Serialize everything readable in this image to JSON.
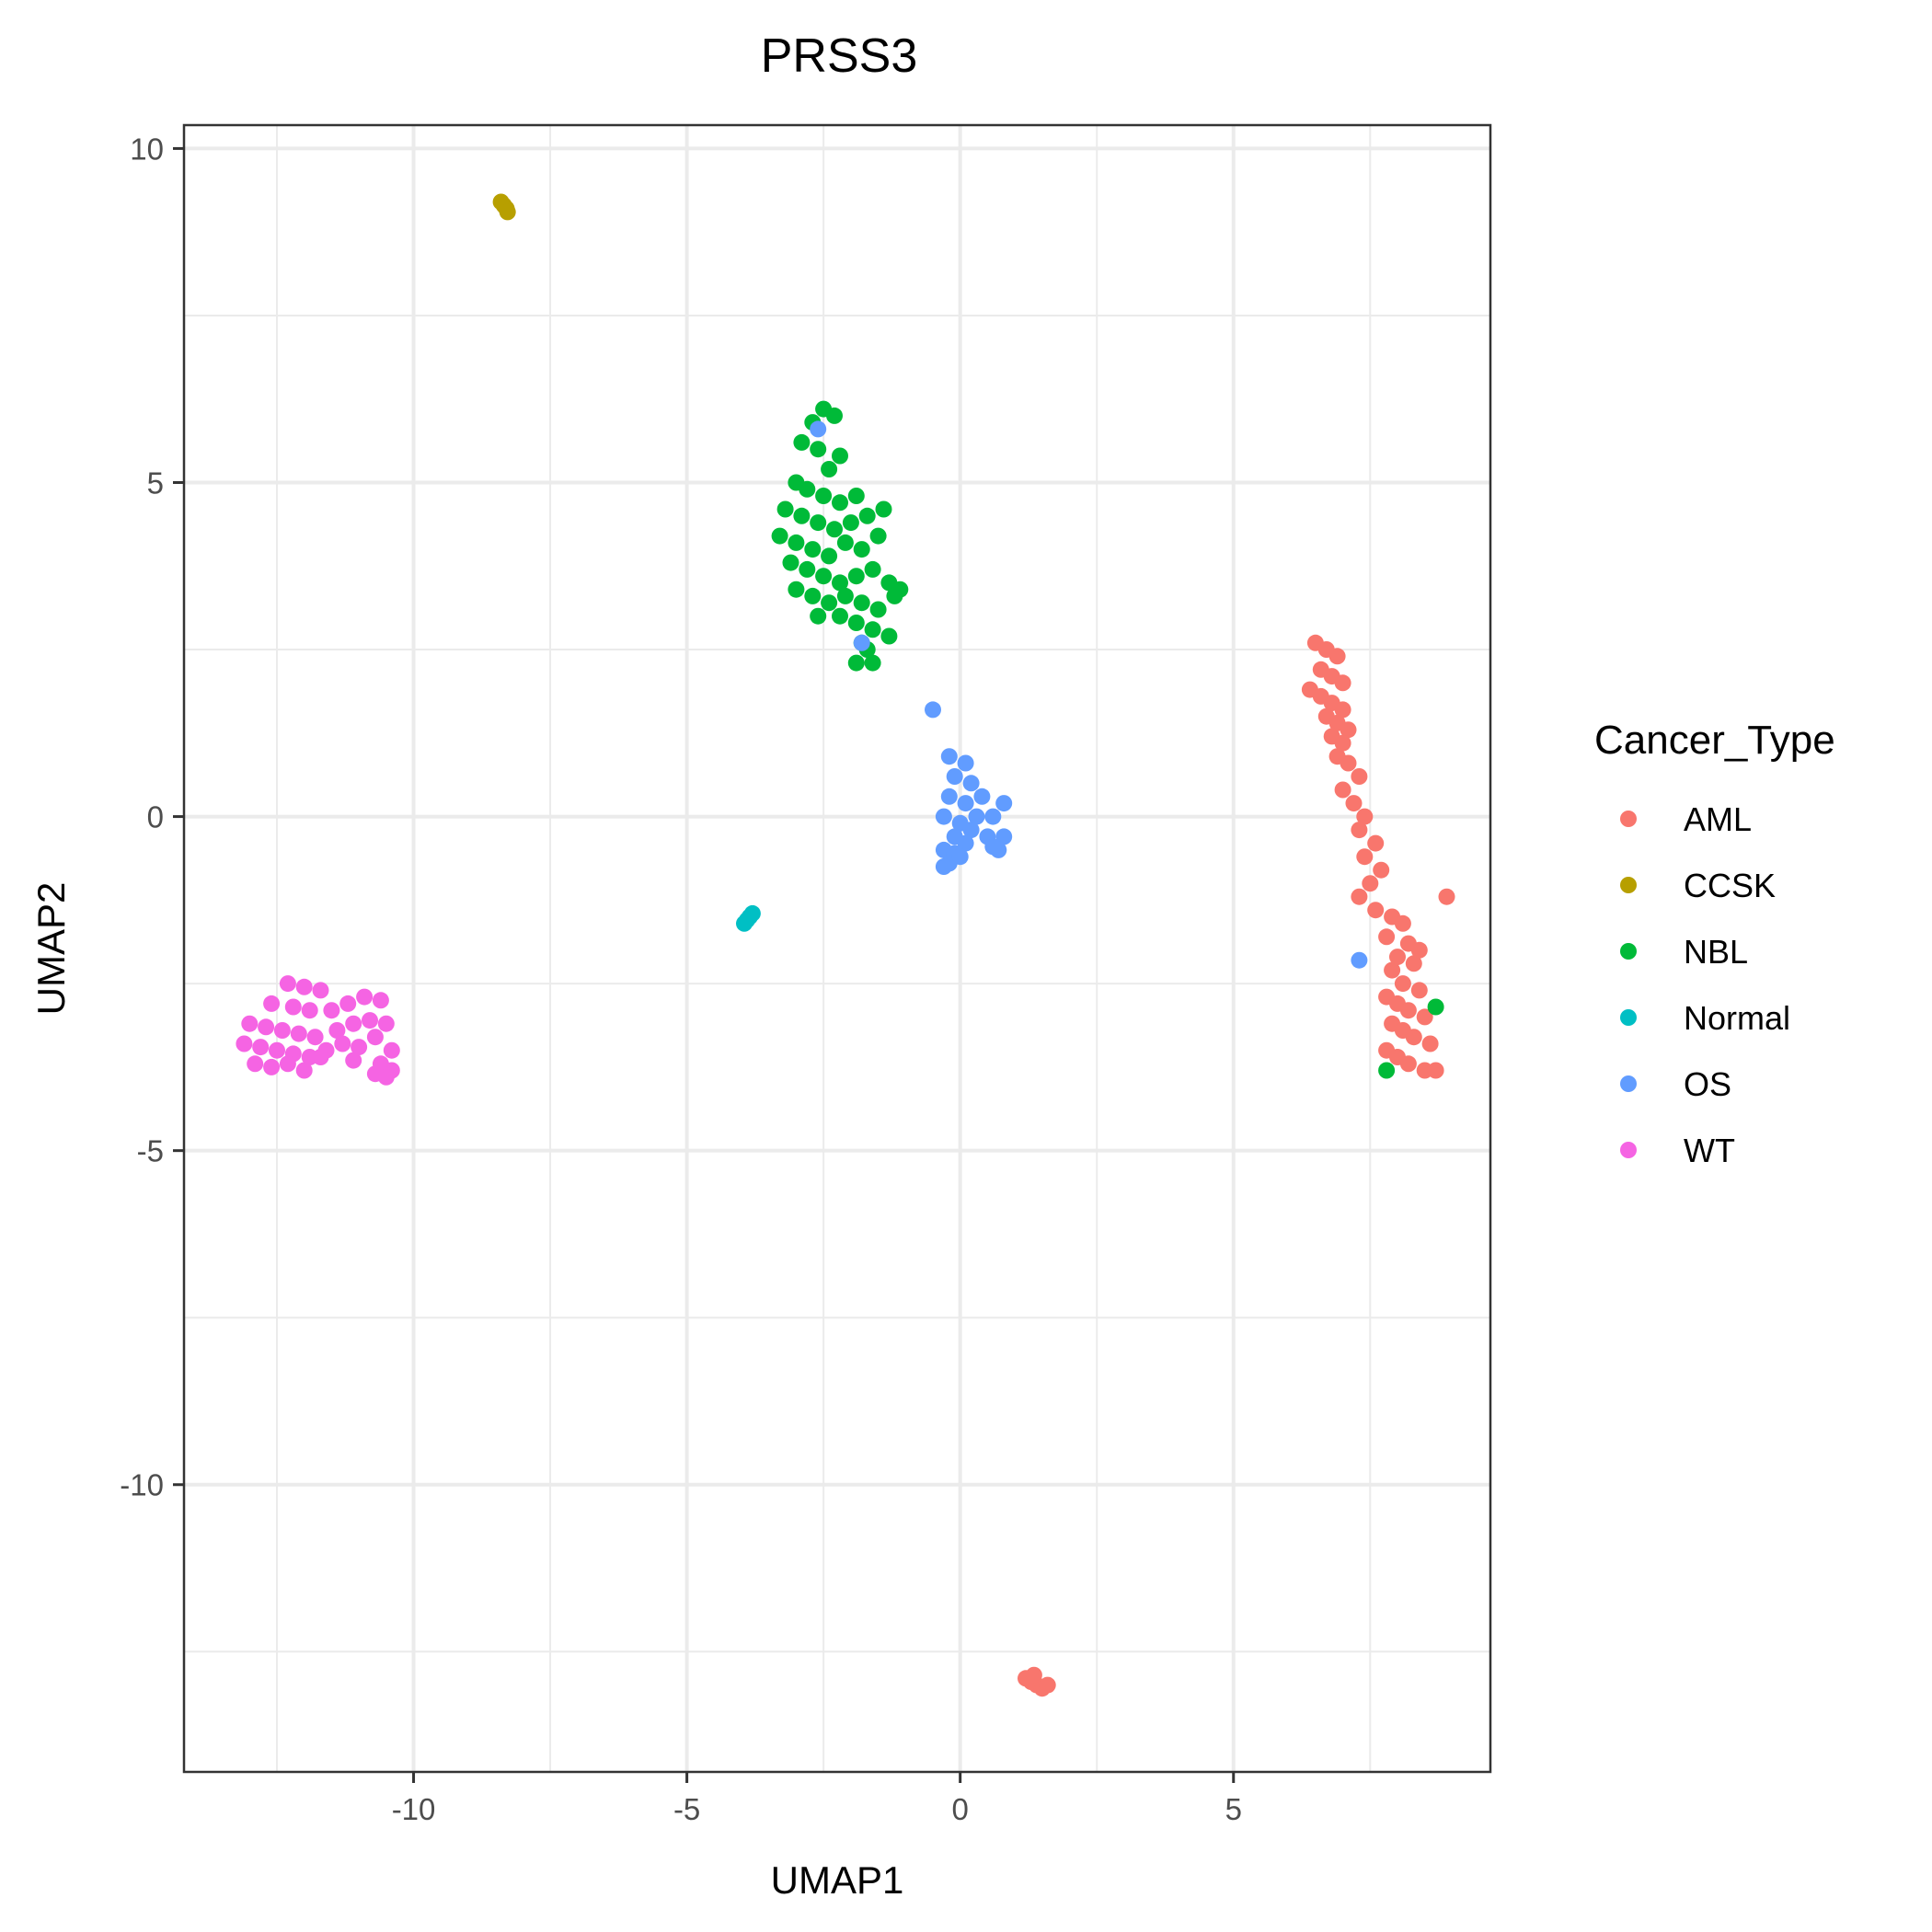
{
  "chart_data": {
    "type": "scatter",
    "title": "PRSS3",
    "xlabel": "UMAP1",
    "ylabel": "UMAP2",
    "xlim": [
      -14.2,
      9.7
    ],
    "ylim": [
      -14.3,
      10.35
    ],
    "x_ticks": [
      -10,
      -5,
      0,
      5
    ],
    "x_tick_labels": [
      "-10",
      "-5",
      "0",
      "5"
    ],
    "y_ticks": [
      -10,
      -5,
      0,
      5,
      10
    ],
    "y_tick_labels": [
      "-10",
      "-5",
      "0",
      "5",
      "10"
    ],
    "grid": true,
    "legend_title": "Cancer_Type",
    "legend_position": "right",
    "series": [
      {
        "name": "AML",
        "color": "#F8766D",
        "points": [
          [
            6.5,
            2.6
          ],
          [
            6.7,
            2.5
          ],
          [
            6.9,
            2.4
          ],
          [
            6.6,
            2.2
          ],
          [
            6.8,
            2.1
          ],
          [
            7.0,
            2.0
          ],
          [
            6.4,
            1.9
          ],
          [
            6.6,
            1.8
          ],
          [
            6.8,
            1.7
          ],
          [
            7.0,
            1.6
          ],
          [
            6.7,
            1.5
          ],
          [
            6.9,
            1.4
          ],
          [
            7.1,
            1.3
          ],
          [
            6.8,
            1.2
          ],
          [
            7.0,
            1.1
          ],
          [
            6.9,
            0.9
          ],
          [
            7.1,
            0.8
          ],
          [
            7.3,
            0.6
          ],
          [
            7.0,
            0.4
          ],
          [
            7.2,
            0.2
          ],
          [
            7.4,
            0.0
          ],
          [
            7.3,
            -0.2
          ],
          [
            7.6,
            -0.4
          ],
          [
            7.4,
            -0.6
          ],
          [
            7.7,
            -0.8
          ],
          [
            7.5,
            -1.0
          ],
          [
            7.3,
            -1.2
          ],
          [
            7.6,
            -1.4
          ],
          [
            7.9,
            -1.5
          ],
          [
            8.1,
            -1.6
          ],
          [
            7.8,
            -1.8
          ],
          [
            8.2,
            -1.9
          ],
          [
            8.0,
            -2.1
          ],
          [
            8.3,
            -2.2
          ],
          [
            7.9,
            -2.3
          ],
          [
            8.1,
            -2.5
          ],
          [
            8.4,
            -2.6
          ],
          [
            7.8,
            -2.7
          ],
          [
            8.0,
            -2.8
          ],
          [
            8.2,
            -2.9
          ],
          [
            8.5,
            -3.0
          ],
          [
            7.9,
            -3.1
          ],
          [
            8.1,
            -3.2
          ],
          [
            8.3,
            -3.3
          ],
          [
            8.6,
            -3.4
          ],
          [
            7.8,
            -3.5
          ],
          [
            8.0,
            -3.6
          ],
          [
            8.2,
            -3.7
          ],
          [
            8.5,
            -3.8
          ],
          [
            8.7,
            -3.8
          ],
          [
            8.9,
            -1.2
          ],
          [
            8.4,
            -2.0
          ],
          [
            1.2,
            -12.9
          ],
          [
            1.3,
            -12.95
          ],
          [
            1.4,
            -13.0
          ],
          [
            1.5,
            -13.05
          ],
          [
            1.6,
            -13.0
          ],
          [
            1.35,
            -12.85
          ]
        ]
      },
      {
        "name": "CCSK",
        "color": "#B79F00",
        "points": [
          [
            -8.4,
            9.2
          ],
          [
            -8.35,
            9.15
          ],
          [
            -8.3,
            9.1
          ],
          [
            -8.28,
            9.05
          ]
        ]
      },
      {
        "name": "NBL",
        "color": "#00BA38",
        "points": [
          [
            -2.5,
            6.1
          ],
          [
            -2.3,
            6.0
          ],
          [
            -2.7,
            5.9
          ],
          [
            -2.9,
            5.6
          ],
          [
            -2.6,
            5.5
          ],
          [
            -2.2,
            5.4
          ],
          [
            -2.4,
            5.2
          ],
          [
            -3.0,
            5.0
          ],
          [
            -2.8,
            4.9
          ],
          [
            -2.5,
            4.8
          ],
          [
            -2.2,
            4.7
          ],
          [
            -1.9,
            4.8
          ],
          [
            -3.2,
            4.6
          ],
          [
            -2.9,
            4.5
          ],
          [
            -2.6,
            4.4
          ],
          [
            -2.3,
            4.3
          ],
          [
            -2.0,
            4.4
          ],
          [
            -1.7,
            4.5
          ],
          [
            -1.4,
            4.6
          ],
          [
            -3.3,
            4.2
          ],
          [
            -3.0,
            4.1
          ],
          [
            -2.7,
            4.0
          ],
          [
            -2.4,
            3.9
          ],
          [
            -2.1,
            4.1
          ],
          [
            -1.8,
            4.0
          ],
          [
            -1.5,
            4.2
          ],
          [
            -3.1,
            3.8
          ],
          [
            -2.8,
            3.7
          ],
          [
            -2.5,
            3.6
          ],
          [
            -2.2,
            3.5
          ],
          [
            -1.9,
            3.6
          ],
          [
            -1.6,
            3.7
          ],
          [
            -1.3,
            3.5
          ],
          [
            -1.1,
            3.4
          ],
          [
            -3.0,
            3.4
          ],
          [
            -2.7,
            3.3
          ],
          [
            -2.4,
            3.2
          ],
          [
            -2.1,
            3.3
          ],
          [
            -1.8,
            3.2
          ],
          [
            -1.5,
            3.1
          ],
          [
            -1.2,
            3.3
          ],
          [
            -2.2,
            3.0
          ],
          [
            -1.9,
            2.9
          ],
          [
            -1.6,
            2.8
          ],
          [
            -1.3,
            2.7
          ],
          [
            -1.7,
            2.5
          ],
          [
            -1.9,
            2.3
          ],
          [
            -1.6,
            2.3
          ],
          [
            -1.8,
            2.6
          ],
          [
            -2.6,
            3.0
          ],
          [
            7.8,
            -3.8
          ],
          [
            8.7,
            -2.85
          ]
        ]
      },
      {
        "name": "Normal",
        "color": "#00BFC4",
        "points": [
          [
            -3.95,
            -1.6
          ],
          [
            -3.9,
            -1.55
          ],
          [
            -3.85,
            -1.5
          ],
          [
            -3.8,
            -1.45
          ]
        ]
      },
      {
        "name": "OS",
        "color": "#619CFF",
        "points": [
          [
            -2.6,
            5.8
          ],
          [
            -1.8,
            2.6
          ],
          [
            -0.5,
            1.6
          ],
          [
            -0.2,
            0.9
          ],
          [
            0.1,
            0.8
          ],
          [
            -0.1,
            0.6
          ],
          [
            0.2,
            0.5
          ],
          [
            0.4,
            0.3
          ],
          [
            -0.2,
            0.3
          ],
          [
            0.1,
            0.2
          ],
          [
            0.3,
            0.0
          ],
          [
            0.6,
            0.0
          ],
          [
            0.8,
            0.2
          ],
          [
            -0.3,
            0.0
          ],
          [
            0.0,
            -0.1
          ],
          [
            0.2,
            -0.2
          ],
          [
            0.5,
            -0.3
          ],
          [
            0.8,
            -0.3
          ],
          [
            -0.1,
            -0.3
          ],
          [
            0.1,
            -0.4
          ],
          [
            0.7,
            -0.5
          ],
          [
            0.6,
            -0.45
          ],
          [
            -0.3,
            -0.5
          ],
          [
            -0.1,
            -0.55
          ],
          [
            -0.2,
            -0.7
          ],
          [
            -0.3,
            -0.75
          ],
          [
            0.0,
            -0.6
          ],
          [
            7.3,
            -2.15
          ]
        ]
      },
      {
        "name": "WT",
        "color": "#F564E3",
        "points": [
          [
            -12.3,
            -2.5
          ],
          [
            -12.0,
            -2.55
          ],
          [
            -11.7,
            -2.6
          ],
          [
            -12.6,
            -2.8
          ],
          [
            -12.2,
            -2.85
          ],
          [
            -11.9,
            -2.9
          ],
          [
            -11.5,
            -2.9
          ],
          [
            -11.2,
            -2.8
          ],
          [
            -10.9,
            -2.7
          ],
          [
            -10.6,
            -2.75
          ],
          [
            -13.0,
            -3.1
          ],
          [
            -12.7,
            -3.15
          ],
          [
            -12.4,
            -3.2
          ],
          [
            -12.1,
            -3.25
          ],
          [
            -11.8,
            -3.3
          ],
          [
            -11.4,
            -3.2
          ],
          [
            -11.1,
            -3.1
          ],
          [
            -10.8,
            -3.05
          ],
          [
            -10.5,
            -3.1
          ],
          [
            -13.1,
            -3.4
          ],
          [
            -12.8,
            -3.45
          ],
          [
            -12.5,
            -3.5
          ],
          [
            -12.2,
            -3.55
          ],
          [
            -11.9,
            -3.6
          ],
          [
            -11.6,
            -3.5
          ],
          [
            -11.3,
            -3.4
          ],
          [
            -11.0,
            -3.45
          ],
          [
            -10.7,
            -3.3
          ],
          [
            -10.4,
            -3.5
          ],
          [
            -12.9,
            -3.7
          ],
          [
            -12.6,
            -3.75
          ],
          [
            -12.3,
            -3.7
          ],
          [
            -12.0,
            -3.8
          ],
          [
            -11.7,
            -3.6
          ],
          [
            -11.1,
            -3.65
          ],
          [
            -10.6,
            -3.7
          ],
          [
            -10.4,
            -3.8
          ],
          [
            -10.5,
            -3.9
          ],
          [
            -10.7,
            -3.85
          ]
        ]
      }
    ]
  }
}
